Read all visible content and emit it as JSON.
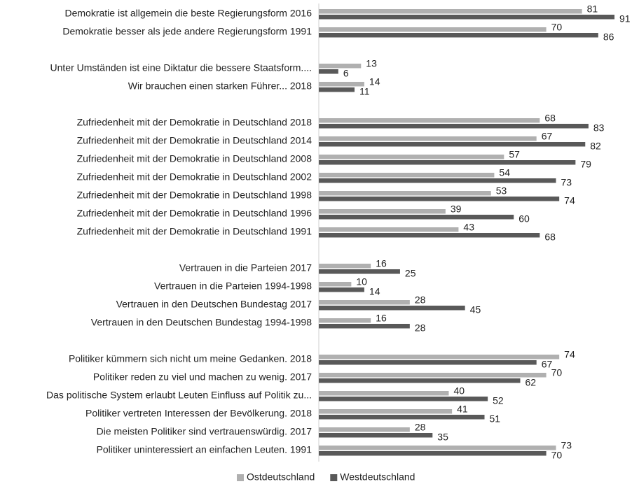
{
  "chart_data": {
    "type": "hbar",
    "categories": [
      "Demokratie ist allgemein die beste Regierungsform 2016",
      "Demokratie besser als jede andere Regierungsform 1991",
      null,
      "Unter Umständen ist eine Diktatur die bessere Staatsform....",
      "Wir brauchen einen starken Führer... 2018",
      null,
      "Zufriedenheit mit der Demokratie in Deutschland 2018",
      "Zufriedenheit mit der Demokratie in Deutschland 2014",
      "Zufriedenheit mit der Demokratie in Deutschland 2008",
      "Zufriedenheit mit der Demokratie in Deutschland 2002",
      "Zufriedenheit mit der Demokratie in Deutschland 1998",
      "Zufriedenheit mit der Demokratie in Deutschland 1996",
      "Zufriedenheit mit der Demokratie in Deutschland 1991",
      null,
      "Vertrauen in die Parteien 2017",
      "Vertrauen in die Parteien 1994-1998",
      "Vertrauen in den Deutschen Bundestag 2017",
      "Vertrauen in den Deutschen Bundestag 1994-1998",
      null,
      "Politiker kümmern sich nicht um meine Gedanken. 2018",
      "Politiker reden zu viel und machen zu wenig. 2017",
      "Das politische System erlaubt Leuten Einfluss auf Politik zu...",
      "Politiker vertreten Interessen der Bevölkerung. 2018",
      "Die meisten Politiker sind vertrauenswürdig. 2017",
      "Politiker uninteressiert an einfachen Leuten. 1991"
    ],
    "series": [
      {
        "name": "Ostdeutschland",
        "color": "#b0b0b0",
        "values": [
          81,
          70,
          null,
          13,
          14,
          null,
          68,
          67,
          57,
          54,
          53,
          39,
          43,
          null,
          16,
          10,
          28,
          16,
          null,
          74,
          70,
          40,
          41,
          28,
          73
        ]
      },
      {
        "name": "Westdeutschland",
        "color": "#595959",
        "values": [
          91,
          86,
          null,
          6,
          11,
          null,
          83,
          82,
          79,
          73,
          74,
          60,
          68,
          null,
          25,
          14,
          45,
          28,
          null,
          67,
          62,
          52,
          51,
          35,
          70
        ]
      }
    ],
    "legend": "bottom"
  }
}
